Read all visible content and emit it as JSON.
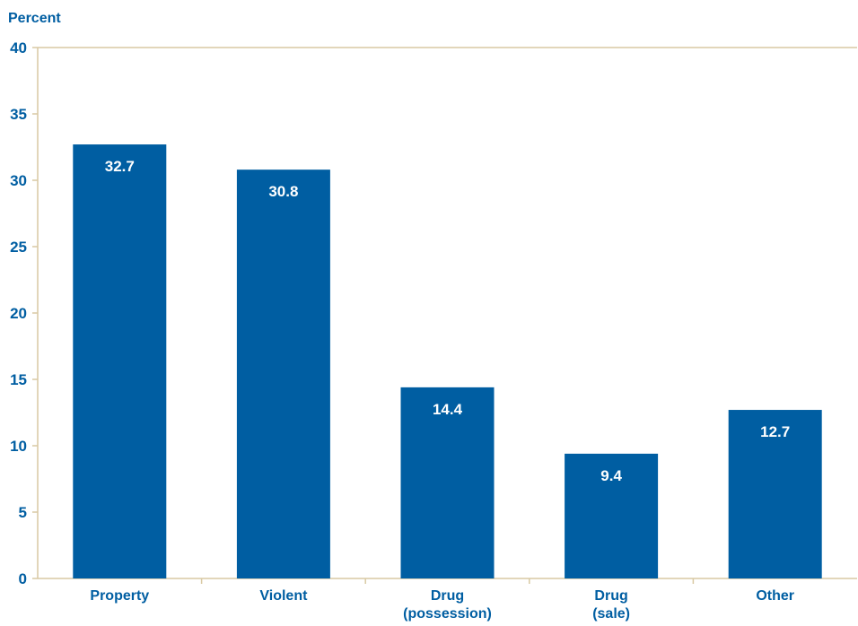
{
  "chart_data": {
    "type": "bar",
    "ylabel": "Percent",
    "xlabel": "",
    "title": "",
    "ylim": [
      0,
      40
    ],
    "yticks": [
      0,
      5,
      10,
      15,
      20,
      25,
      30,
      35,
      40
    ],
    "grid": false,
    "legend": "none",
    "categories": [
      [
        "Property"
      ],
      [
        "Violent"
      ],
      [
        "Drug",
        "(possession)"
      ],
      [
        "Drug",
        "(sale)"
      ],
      [
        "Other"
      ]
    ],
    "values": [
      32.7,
      30.8,
      14.4,
      9.4,
      12.7
    ],
    "value_labels": [
      "32.7",
      "30.8",
      "14.4",
      "9.4",
      "12.7"
    ],
    "colors": {
      "bar": "#005ea2",
      "axis": "#d9c9a3",
      "text": "#005ea2",
      "data_label": "#ffffff"
    }
  }
}
